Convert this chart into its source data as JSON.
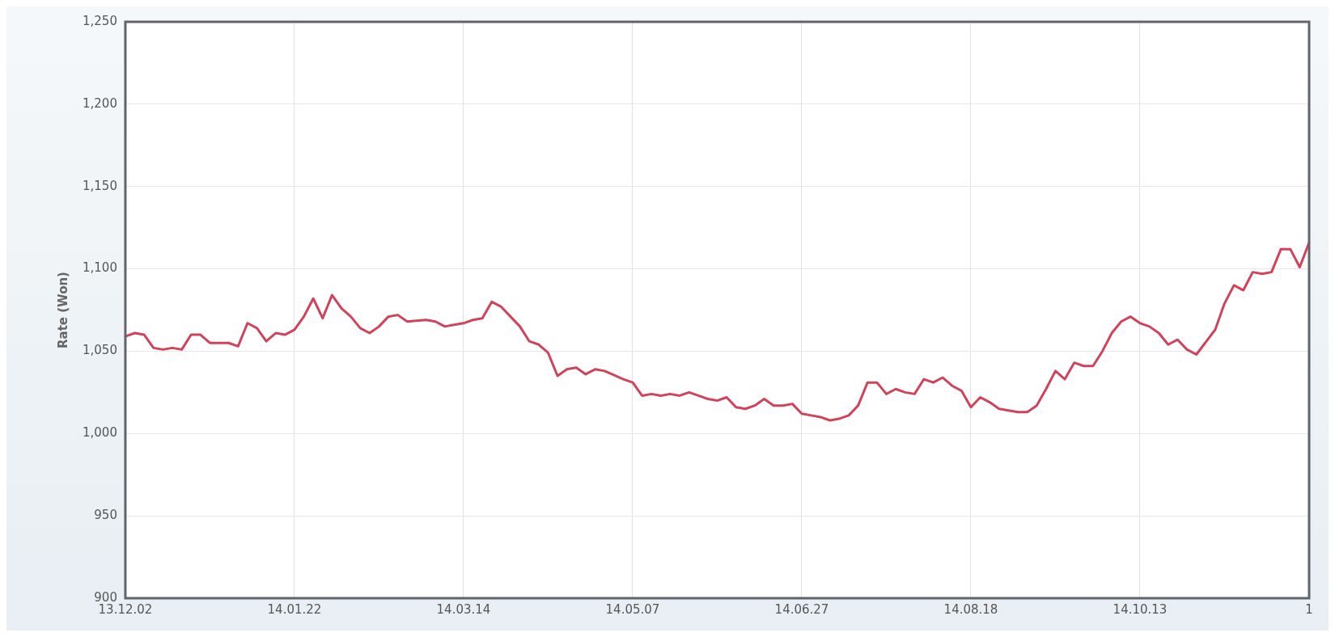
{
  "chart_data": {
    "type": "line",
    "ylabel": "Rate (Won)",
    "categories": [
      "13.12.02",
      null,
      null,
      null,
      null,
      null,
      null,
      null,
      null,
      null,
      null,
      null,
      null,
      null,
      null,
      null,
      null,
      null,
      "14.01.22",
      null,
      null,
      null,
      null,
      null,
      null,
      null,
      null,
      null,
      null,
      null,
      null,
      null,
      null,
      null,
      null,
      null,
      "14.03.14",
      null,
      null,
      null,
      null,
      null,
      null,
      null,
      null,
      null,
      null,
      null,
      null,
      null,
      null,
      null,
      null,
      null,
      "14.05.07",
      null,
      null,
      null,
      null,
      null,
      null,
      null,
      null,
      null,
      null,
      null,
      null,
      null,
      null,
      null,
      null,
      null,
      "14.06.27",
      null,
      null,
      null,
      null,
      null,
      null,
      null,
      null,
      null,
      null,
      null,
      null,
      null,
      null,
      null,
      null,
      null,
      "14.08.18",
      null,
      null,
      null,
      null,
      null,
      null,
      null,
      null,
      null,
      null,
      null,
      null,
      null,
      null,
      null,
      null,
      null,
      "14.10.13",
      null,
      null,
      null,
      null,
      null,
      null,
      null,
      null,
      null,
      null,
      null,
      null,
      null,
      null,
      null,
      null,
      null,
      "1"
    ],
    "series": [
      {
        "color": "#d0435a",
        "values": [
          1059,
          1061,
          1060,
          1052,
          1051,
          1052,
          1051,
          1060,
          1060,
          1055,
          1055,
          1055,
          1053,
          1067,
          1064,
          1056,
          1061,
          1060,
          1063,
          1071,
          1082,
          1070,
          1084,
          1076,
          1071,
          1064,
          1061,
          1065,
          1071,
          1072,
          1068,
          1068.5,
          1069,
          1068,
          1065,
          1066,
          1067,
          1069,
          1070,
          1080,
          1077,
          1071,
          1065,
          1056,
          1054,
          1049,
          1035,
          1039,
          1040,
          1036,
          1039,
          1038,
          1035.5,
          1033,
          1031,
          1023,
          1024,
          1023,
          1024,
          1023,
          1025,
          1023,
          1021,
          1020,
          1022,
          1016,
          1015,
          1017,
          1021,
          1017,
          1017,
          1018,
          1012,
          1011,
          1010,
          1008,
          1009,
          1011,
          1017,
          1031,
          1031,
          1024,
          1027,
          1025,
          1024,
          1033,
          1031,
          1034,
          1029,
          1026,
          1016,
          1022,
          1019,
          1015,
          1014,
          1013,
          1013,
          1017,
          1027,
          1038,
          1033,
          1043,
          1041,
          1041,
          1050,
          1061,
          1068,
          1071,
          1067,
          1065,
          1061,
          1054,
          1057,
          1051,
          1048,
          1055.5,
          1063,
          1079,
          1090,
          1087,
          1098,
          1097,
          1098,
          1112,
          1112,
          1101,
          1116
        ]
      }
    ],
    "ylim": [
      900,
      1250
    ],
    "yticks": [
      {
        "value": 900,
        "label": "900"
      },
      {
        "value": 950,
        "label": "950"
      },
      {
        "value": 1000,
        "label": "1,000"
      },
      {
        "value": 1050,
        "label": "1,050"
      },
      {
        "value": 1100,
        "label": "1,100"
      },
      {
        "value": 1150,
        "label": "1,150"
      },
      {
        "value": 1200,
        "label": "1,200"
      },
      {
        "value": 1250,
        "label": "1,250"
      }
    ],
    "grid": true,
    "legend": false,
    "marker": "none",
    "line_style": "solid"
  }
}
